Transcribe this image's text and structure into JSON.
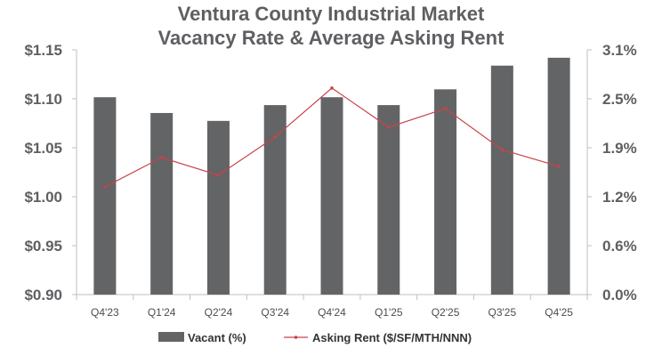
{
  "chart_data": {
    "type": "bar",
    "title": [
      "Ventura County Industrial Market",
      "Vacancy Rate & Average Asking Rent"
    ],
    "categories": [
      "Q4'23",
      "Q1'24",
      "Q2'24",
      "Q3'24",
      "Q4'24",
      "Q1'25",
      "Q2'25",
      "Q3'25",
      "Q4'25"
    ],
    "series": [
      {
        "name": "Vacant (%)",
        "type": "bar",
        "axis": "right",
        "values": [
          2.5,
          2.3,
          2.2,
          2.4,
          2.5,
          2.4,
          2.6,
          2.9,
          3.0
        ]
      },
      {
        "name": "Asking Rent ($/SF/MTH/NNN)",
        "type": "line",
        "axis": "left",
        "values": [
          1.01,
          1.04,
          1.022,
          1.061,
          1.111,
          1.071,
          1.09,
          1.048,
          1.031
        ]
      }
    ],
    "y_left": {
      "ylim": [
        0.9,
        1.15
      ],
      "ticks": [
        "$1.15",
        "$1.10",
        "$1.05",
        "$1.00",
        "$0.95",
        "$0.90"
      ]
    },
    "y_right": {
      "ylim": [
        0.0,
        3.1
      ],
      "ticks": [
        "3.1%",
        "2.5%",
        "1.9%",
        "1.2%",
        "0.6%",
        "0.0%"
      ]
    },
    "grid": false,
    "legend_position": "bottom",
    "colors": {
      "bar": "#636466",
      "line": "#c8434a",
      "title": "#5f5f63",
      "axis_text": "#5f5f63",
      "axis_line": "#bfbfbf"
    }
  }
}
